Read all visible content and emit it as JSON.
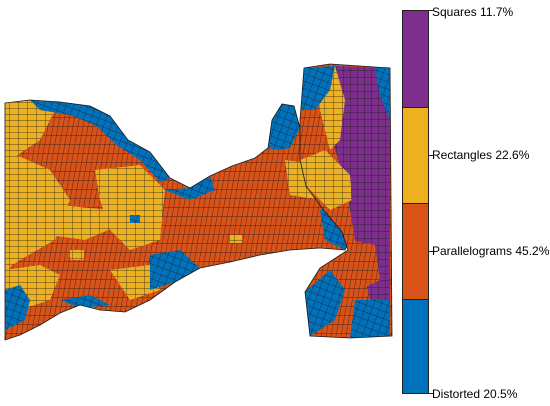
{
  "legend": {
    "items": [
      {
        "label": "Squares 11.7%",
        "color": "#7E2F8E"
      },
      {
        "label": "Rectangles 22.6%",
        "color": "#EDB120"
      },
      {
        "label": "Parallelograms 45.2%",
        "color": "#D95319"
      },
      {
        "label": "Distorted 20.5%",
        "color": "#0072BD"
      }
    ]
  },
  "colors": {
    "squares": "#7E2F8E",
    "rectangles": "#EDB120",
    "parallelograms": "#D95319",
    "distorted": "#0072BD",
    "mesh_line": "#1a1a1a"
  }
}
